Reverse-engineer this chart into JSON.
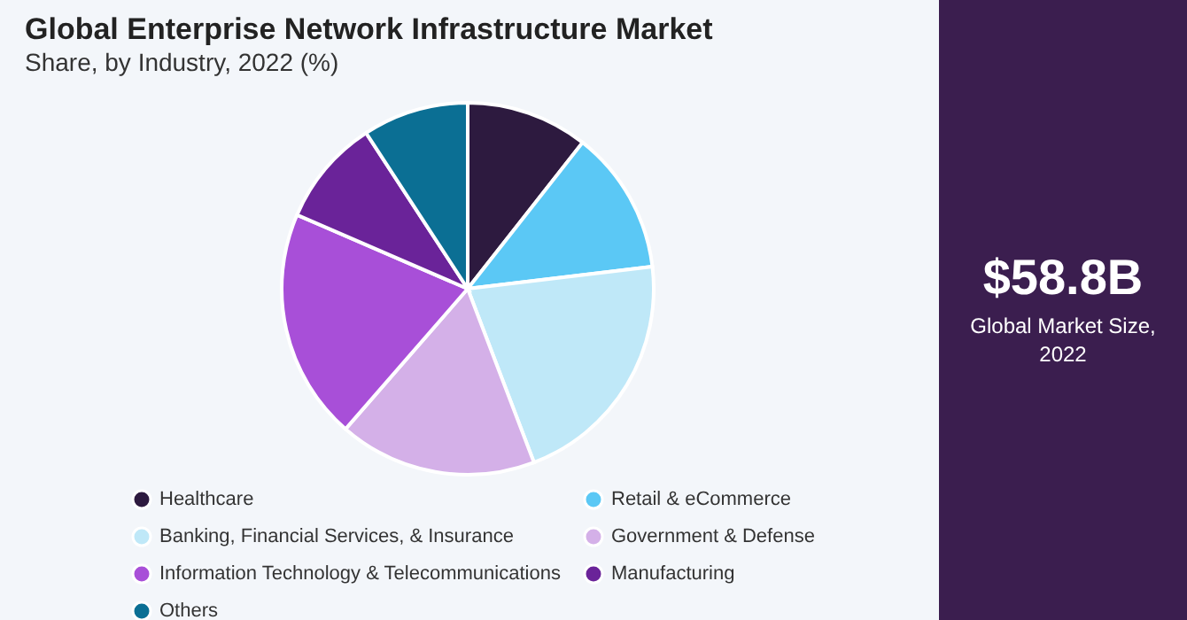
{
  "chart_data": {
    "type": "pie",
    "title": "Global Enterprise Network Infrastructure Market",
    "subtitle": "Share, by Industry, 2022 (%)",
    "categories": [
      "Healthcare",
      "Retail & eCommerce",
      "Banking, Financial Services, & Insurance",
      "Government & Defense",
      "Information Technology & Telecommunications",
      "Manufacturing",
      "Others"
    ],
    "values": [
      10.6,
      12.5,
      21.1,
      17.2,
      20.1,
      9.3,
      9.2
    ],
    "colors": [
      "#2d1a3f",
      "#5bc8f5",
      "#bfe8f8",
      "#d4b0e8",
      "#a84fd8",
      "#6a2399",
      "#0b6f94"
    ],
    "legend": "bottom",
    "annotations": [
      "$58.8B",
      "Global Market Size, 2022"
    ]
  }
}
